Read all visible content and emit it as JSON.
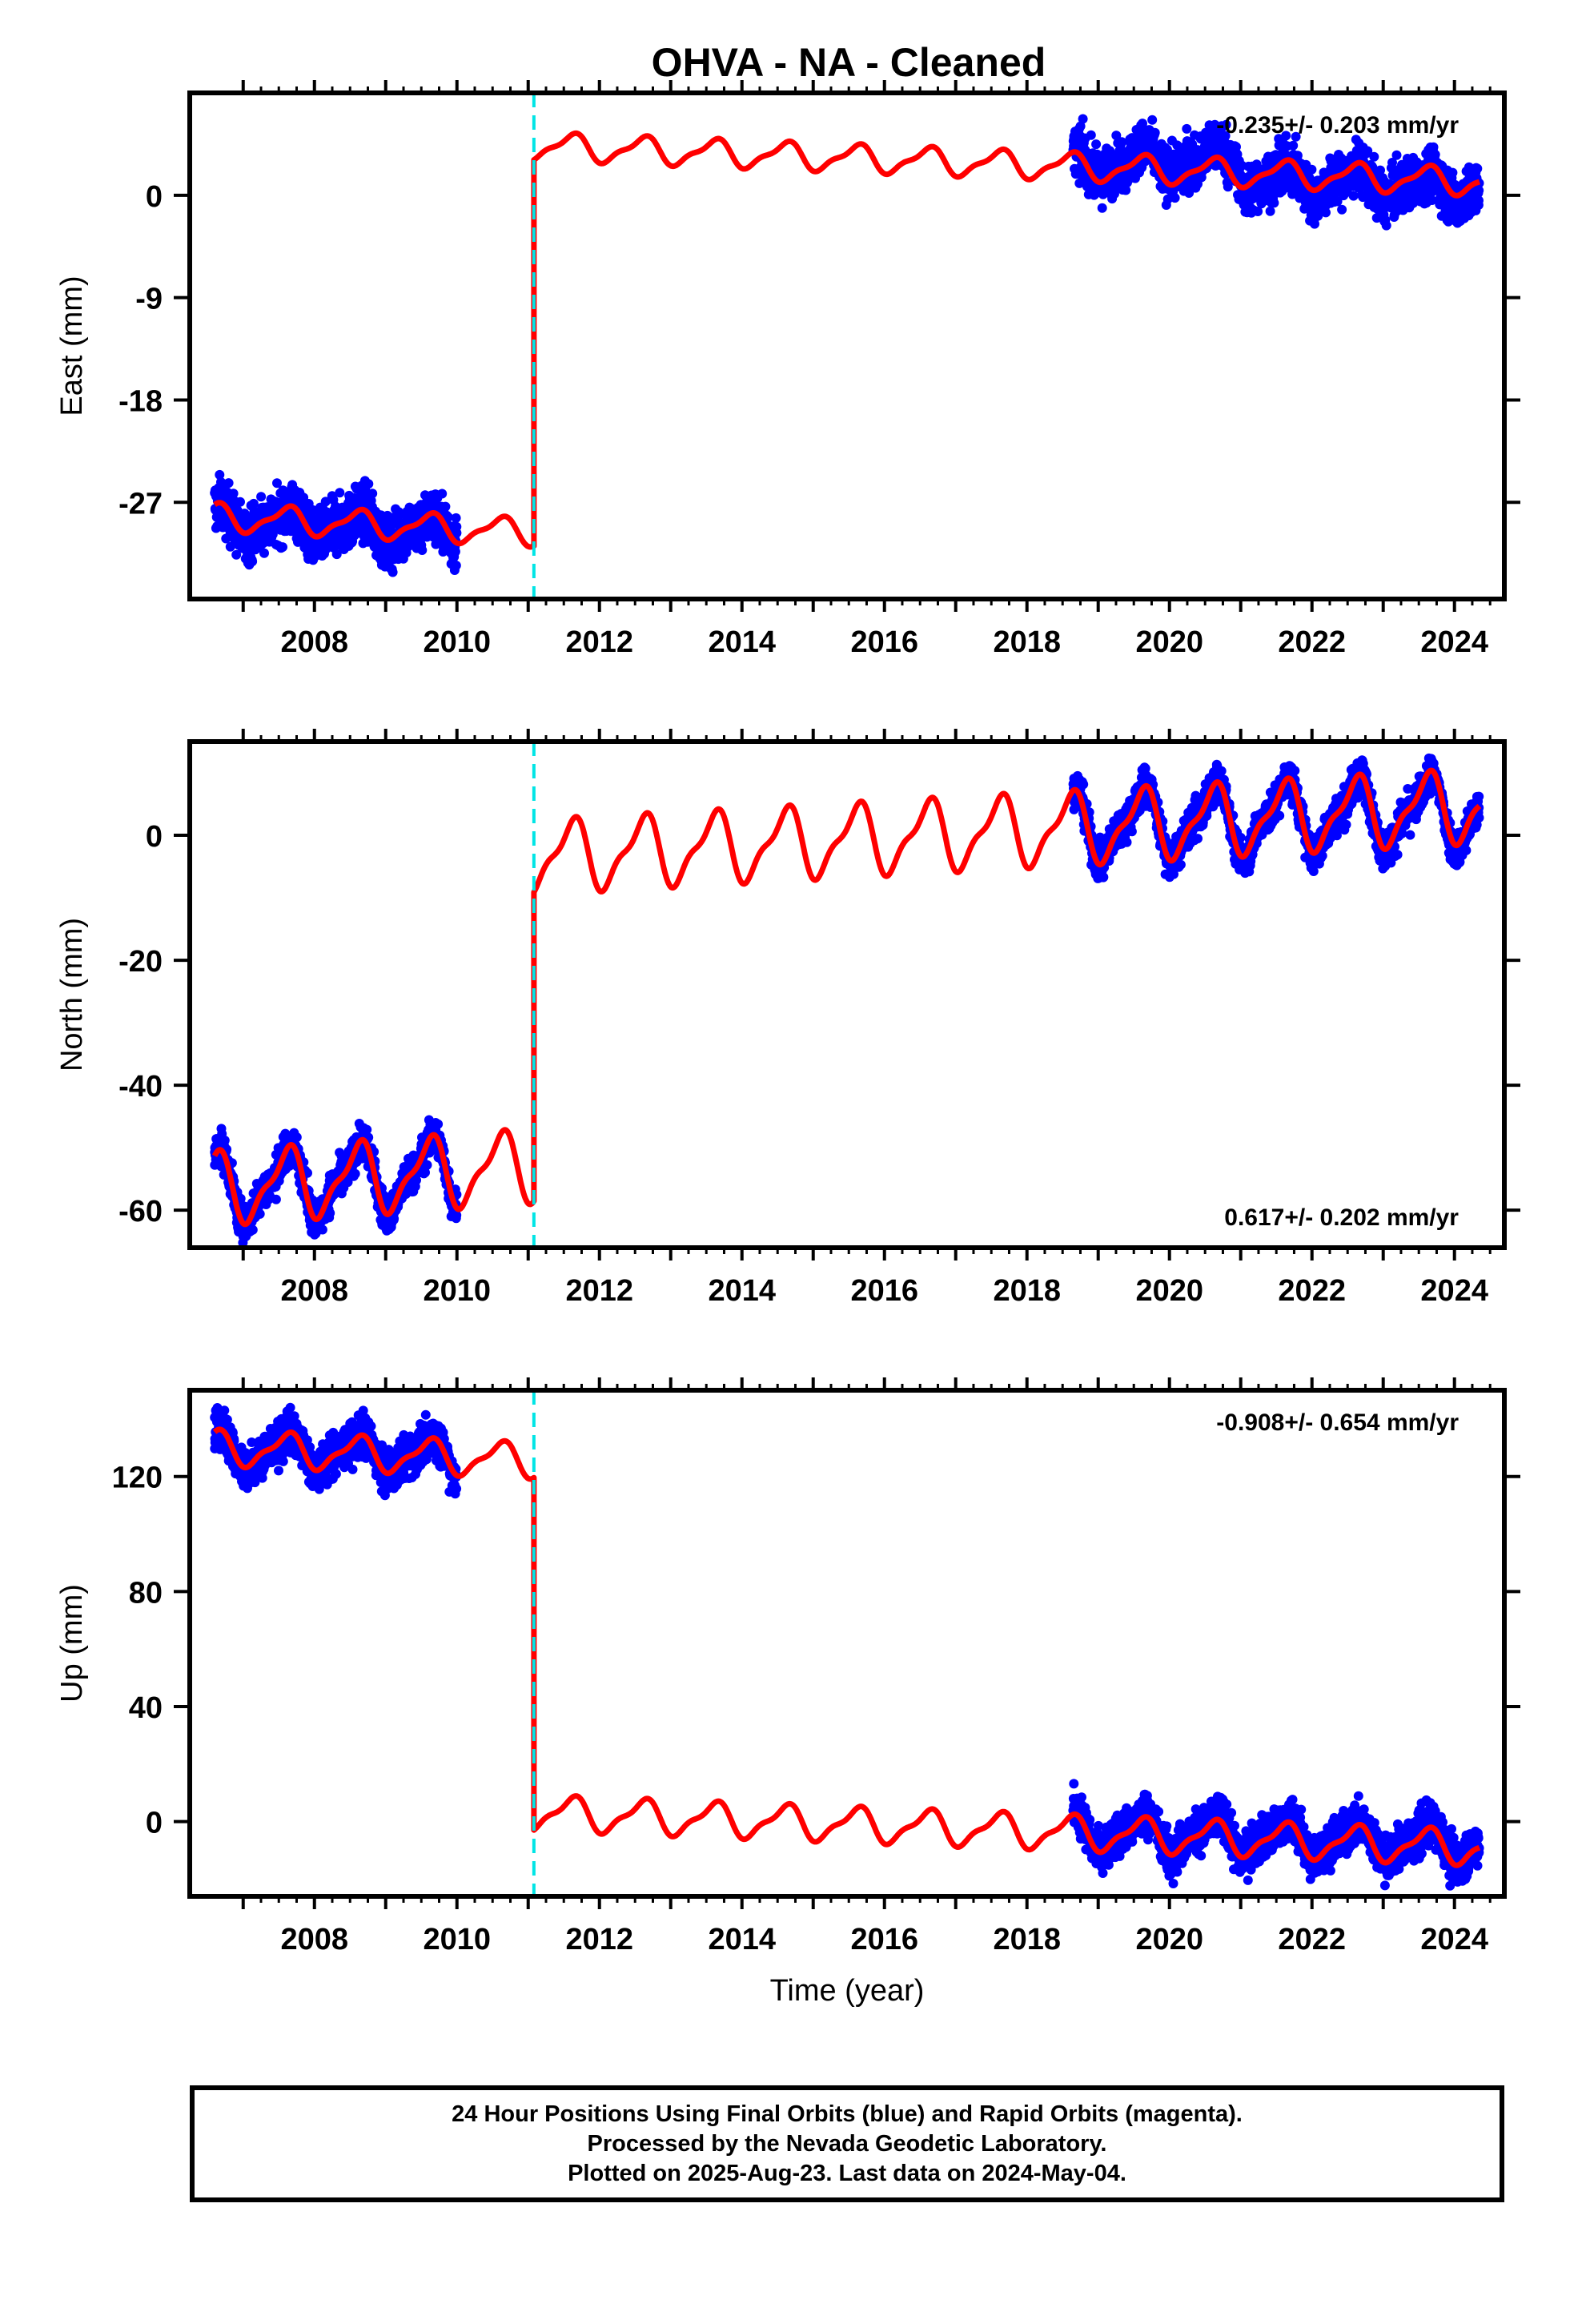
{
  "title": "OHVA  - NA - Cleaned",
  "colors": {
    "observed": "#0000ff",
    "model": "#ff0000",
    "offset_marker": "#00e5e5"
  },
  "caption": {
    "line1": "24 Hour Positions Using Final Orbits (blue) and Rapid Orbits (magenta).",
    "line2": "Processed by the Nevada Geodetic Laboratory.",
    "line3": "Plotted on 2025-Aug-23. Last data on 2024-May-04."
  },
  "chart_data": [
    {
      "type": "scatter",
      "component": "east",
      "ylabel": "East (mm)",
      "xlabel": "",
      "rate": "-0.235+/- 0.203 mm/yr",
      "rate_position": "top-right",
      "xlim": [
        2006.25,
        2024.7
      ],
      "ylim": [
        -35.5,
        9
      ],
      "xticks": [
        "2008",
        "2010",
        "2012",
        "2014",
        "2016",
        "2018",
        "2020",
        "2022",
        "2024"
      ],
      "yticks": [
        "0",
        "-9",
        "-18",
        "-27"
      ],
      "ytick_values": [
        0,
        -9,
        -18,
        -27
      ],
      "offset_epoch": 2011.08,
      "data_segments": [
        {
          "x_start": 2006.6,
          "x_end": 2010.0,
          "y_start": -28.5,
          "y_end": -29.6,
          "scatter_amplitude": 1.6
        },
        {
          "x_start": 2018.65,
          "x_end": 2021.0,
          "y_start": 2.8,
          "y_end": 3.2,
          "scatter_amplitude": 1.5
        },
        {
          "x_start": 2021.0,
          "x_end": 2024.35,
          "y_start": 1.4,
          "y_end": 0.6,
          "scatter_amplitude": 1.5
        }
      ],
      "model": {
        "pre_offset": {
          "x_start": 2006.6,
          "y_start": -28.3,
          "rate": -0.3
        },
        "post_offset": {
          "x_end": 2024.35,
          "y_start": 4.3,
          "rate": -0.235
        },
        "annual_amplitude": 1.1
      }
    },
    {
      "type": "scatter",
      "component": "north",
      "ylabel": "North (mm)",
      "xlabel": "",
      "rate": "0.617+/- 0.202 mm/yr",
      "rate_position": "bottom-right",
      "xlim": [
        2006.25,
        2024.7
      ],
      "ylim": [
        -66,
        15
      ],
      "xticks": [
        "2008",
        "2010",
        "2012",
        "2014",
        "2016",
        "2018",
        "2020",
        "2022",
        "2024"
      ],
      "yticks": [
        "0",
        "-20",
        "-40",
        "-60"
      ],
      "ytick_values": [
        0,
        -20,
        -40,
        -60
      ],
      "offset_epoch": 2011.08,
      "data_segments": [
        {
          "x_start": 2006.6,
          "x_end": 2010.0,
          "y_start": -56.5,
          "y_end": -54.0,
          "scatter_amplitude": 2.0
        },
        {
          "x_start": 2018.65,
          "x_end": 2024.35,
          "y_start": 1.5,
          "y_end": 4.0,
          "scatter_amplitude": 2.0
        }
      ],
      "model": {
        "pre_offset": {
          "x_start": 2006.6,
          "y_start": -56.5,
          "rate": 0.8
        },
        "post_offset": {
          "x_end": 2024.35,
          "y_start": -3.5,
          "rate": 0.617
        },
        "annual_amplitude": 5.2
      }
    },
    {
      "type": "scatter",
      "component": "up",
      "ylabel": "Up (mm)",
      "xlabel": "Time (year)",
      "rate": "-0.908+/- 0.654 mm/yr",
      "rate_position": "top-right",
      "xlim": [
        2006.25,
        2024.7
      ],
      "ylim": [
        -26,
        150
      ],
      "xticks": [
        "2008",
        "2010",
        "2012",
        "2014",
        "2016",
        "2018",
        "2020",
        "2022",
        "2024"
      ],
      "yticks": [
        "120",
        "80",
        "40",
        "0"
      ],
      "ytick_values": [
        120,
        80,
        40,
        0
      ],
      "offset_epoch": 2011.08,
      "data_segments": [
        {
          "x_start": 2006.6,
          "x_end": 2010.0,
          "y_start": 130.0,
          "y_end": 127.0,
          "scatter_amplitude": 5.0
        },
        {
          "x_start": 2018.65,
          "x_end": 2024.35,
          "y_start": -3.0,
          "y_end": -8.0,
          "scatter_amplitude": 5.0
        }
      ],
      "model": {
        "pre_offset": {
          "x_start": 2006.6,
          "y_start": 130.0,
          "rate": -1.0
        },
        "post_offset": {
          "x_end": 2024.35,
          "y_start": 3.0,
          "rate": -0.908
        },
        "annual_amplitude": 5.5
      }
    }
  ]
}
